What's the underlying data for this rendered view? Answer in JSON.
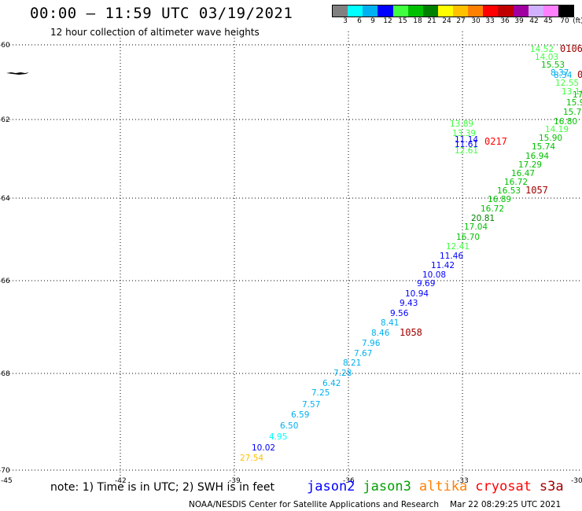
{
  "header": {
    "title": "00:00 – 11:59 UTC 03/19/2021",
    "subtitle": "12 hour collection of altimeter wave heights"
  },
  "colorbar": {
    "colors": [
      "#808080",
      "#00ffff",
      "#00b0f0",
      "#0000ff",
      "#40ff40",
      "#00c000",
      "#008000",
      "#ffff00",
      "#ffc000",
      "#ff8000",
      "#ff0000",
      "#c00000",
      "#a000a0",
      "#d0b0ff",
      "#ff80ff",
      "#000000"
    ],
    "labels": [
      "3",
      "6",
      "9",
      "12",
      "15",
      "18",
      "21",
      "24",
      "27",
      "30",
      "33",
      "36",
      "39",
      "42",
      "45",
      "70",
      "(ft)"
    ]
  },
  "axes": {
    "lat_labels": [
      "-60",
      "-62",
      "-64",
      "-66",
      "-68",
      "-70"
    ],
    "lon_labels": [
      "-45",
      "-42",
      "-39",
      "-36",
      "-33",
      "-30"
    ]
  },
  "observations": [
    {
      "v": "14.52",
      "c": "#40ff40"
    },
    {
      "v": "14.03",
      "c": "#40ff40"
    },
    {
      "v": "15.53",
      "c": "#00c000"
    },
    {
      "v": "8.37",
      "c": "#00b0f0"
    },
    {
      "v": "8.34",
      "c": "#00b0f0"
    },
    {
      "v": "12.55",
      "c": "#40ff40"
    },
    {
      "v": "13.14",
      "c": "#40ff40"
    },
    {
      "v": "17",
      "c": "#00c000"
    },
    {
      "v": "15.9",
      "c": "#00c000"
    },
    {
      "v": "15.70",
      "c": "#00c000"
    },
    {
      "v": "16.80",
      "c": "#00c000"
    },
    {
      "v": "14.19",
      "c": "#40ff40"
    },
    {
      "v": "15.90",
      "c": "#00c000"
    },
    {
      "v": "15.74",
      "c": "#00c000"
    },
    {
      "v": "16.94",
      "c": "#00c000"
    },
    {
      "v": "17.29",
      "c": "#00c000"
    },
    {
      "v": "16.47",
      "c": "#00c000"
    },
    {
      "v": "16.72",
      "c": "#00c000"
    },
    {
      "v": "16.53",
      "c": "#00c000"
    },
    {
      "v": "16.89",
      "c": "#00c000"
    },
    {
      "v": "16.72",
      "c": "#00c000"
    },
    {
      "v": "20.81",
      "c": "#008000"
    },
    {
      "v": "17.04",
      "c": "#00c000"
    },
    {
      "v": "16.70",
      "c": "#00c000"
    },
    {
      "v": "12.41",
      "c": "#40ff40"
    },
    {
      "v": "11.46",
      "c": "#0000ff"
    },
    {
      "v": "11.42",
      "c": "#0000ff"
    },
    {
      "v": "10.08",
      "c": "#0000ff"
    },
    {
      "v": "9.69",
      "c": "#0000ff"
    },
    {
      "v": "10.94",
      "c": "#0000ff"
    },
    {
      "v": "9.43",
      "c": "#0000ff"
    },
    {
      "v": "9.56",
      "c": "#0000ff"
    },
    {
      "v": "8.41",
      "c": "#00b0f0"
    },
    {
      "v": "8.46",
      "c": "#00b0f0"
    },
    {
      "v": "7.96",
      "c": "#00b0f0"
    },
    {
      "v": "7.67",
      "c": "#00b0f0"
    },
    {
      "v": "8.21",
      "c": "#00b0f0"
    },
    {
      "v": "7.28",
      "c": "#00b0f0"
    },
    {
      "v": "6.42",
      "c": "#00b0f0"
    },
    {
      "v": "7.25",
      "c": "#00b0f0"
    },
    {
      "v": "7.57",
      "c": "#00b0f0"
    },
    {
      "v": "6.59",
      "c": "#00b0f0"
    },
    {
      "v": "6.50",
      "c": "#00b0f0"
    },
    {
      "v": "4.95",
      "c": "#00ffff"
    },
    {
      "v": "10.02",
      "c": "#0000ff"
    },
    {
      "v": "27.54",
      "c": "#ffc000"
    },
    {
      "v": "13.89",
      "c": "#40ff40"
    },
    {
      "v": "13.39",
      "c": "#40ff40"
    },
    {
      "v": "11.14",
      "c": "#0000ff"
    },
    {
      "v": "11.61",
      "c": "#0000ff"
    },
    {
      "v": "12.61",
      "c": "#40ff40"
    }
  ],
  "time_labels": [
    {
      "v": "0106",
      "c": "#a00000"
    },
    {
      "v": "0",
      "c": "#a00000"
    },
    {
      "v": "0217",
      "c": "#ff0000"
    },
    {
      "v": "1057",
      "c": "#a00000"
    },
    {
      "v": "1058",
      "c": "#a00000"
    }
  ],
  "footer": {
    "note": "note: 1) Time is in UTC; 2) SWH is in feet",
    "satellites": [
      {
        "name": "jason2",
        "color": "#0000ff"
      },
      {
        "name": "jason3",
        "color": "#00a000"
      },
      {
        "name": "altika",
        "color": "#ff8000"
      },
      {
        "name": "cryosat",
        "color": "#ff0000"
      },
      {
        "name": "s3a",
        "color": "#a00000"
      }
    ],
    "credit": "NOAA/NESDIS Center for Satellite Applications and Research",
    "timestamp": "Mar 22 08:29:25 UTC 2021"
  }
}
